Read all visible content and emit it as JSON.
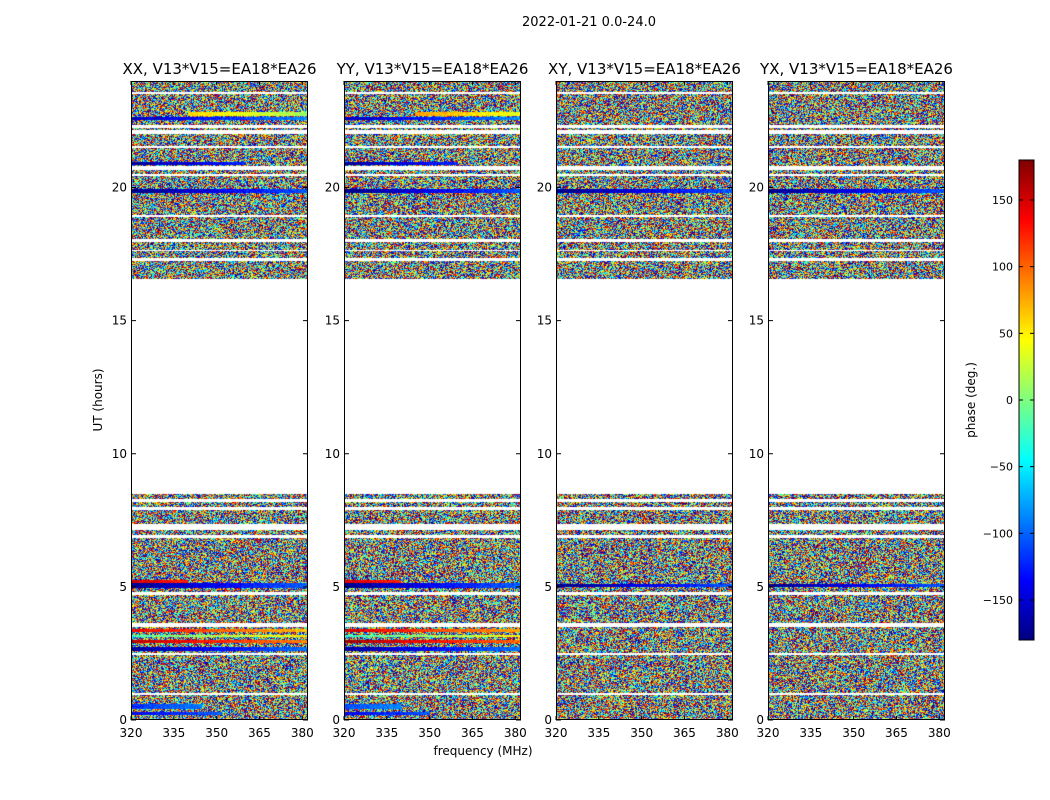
{
  "chart_data": {
    "type": "heatmap",
    "suptitle": "2022-01-21 0.0-24.0",
    "xlabel": "frequency (MHz)",
    "ylabel": "UT (hours)",
    "xlim": [
      320,
      382
    ],
    "ylim": [
      0,
      24
    ],
    "xticks": [
      320,
      335,
      350,
      365,
      380
    ],
    "yticks": [
      0,
      5,
      10,
      15,
      20
    ],
    "panels": [
      {
        "title": "XX, V13*V15=EA18*EA26",
        "bands": [
          {
            "t0": 0.2,
            "t1": 0.3,
            "value": -140,
            "start": 320,
            "end": 352
          },
          {
            "t0": 0.4,
            "t1": 0.6,
            "value": -120,
            "start": 320,
            "end": 345
          },
          {
            "t0": 2.6,
            "t1": 2.75,
            "value": -170,
            "start": 320,
            "end": 382
          },
          {
            "t0": 2.9,
            "t1": 3.0,
            "value": 160,
            "start": 320,
            "end": 382
          },
          {
            "t0": 3.1,
            "t1": 3.2,
            "value": -20,
            "start": 320,
            "end": 382
          },
          {
            "t0": 3.3,
            "t1": 3.4,
            "value": 140,
            "start": 320,
            "end": 382
          },
          {
            "t0": 4.95,
            "t1": 5.15,
            "value": -175,
            "start": 320,
            "end": 382
          },
          {
            "t0": 5.15,
            "t1": 5.25,
            "value": 150,
            "start": 320,
            "end": 340
          },
          {
            "t0": 19.8,
            "t1": 19.95,
            "value": -178,
            "start": 320,
            "end": 382
          },
          {
            "t0": 20.85,
            "t1": 20.95,
            "value": -170,
            "start": 320,
            "end": 360
          },
          {
            "t0": 22.7,
            "t1": 22.85,
            "value": 60,
            "start": 340,
            "end": 382
          },
          {
            "t0": 22.55,
            "t1": 22.65,
            "value": -160,
            "start": 320,
            "end": 382
          }
        ]
      },
      {
        "title": "YY, V13*V15=EA18*EA26",
        "bands": [
          {
            "t0": 0.2,
            "t1": 0.3,
            "value": -140,
            "start": 320,
            "end": 350
          },
          {
            "t0": 0.4,
            "t1": 0.6,
            "value": -110,
            "start": 320,
            "end": 340
          },
          {
            "t0": 2.6,
            "t1": 2.75,
            "value": -170,
            "start": 320,
            "end": 382
          },
          {
            "t0": 2.9,
            "t1": 3.0,
            "value": 170,
            "start": 320,
            "end": 382
          },
          {
            "t0": 3.1,
            "t1": 3.2,
            "value": -30,
            "start": 320,
            "end": 382
          },
          {
            "t0": 3.3,
            "t1": 3.4,
            "value": 150,
            "start": 320,
            "end": 382
          },
          {
            "t0": 4.95,
            "t1": 5.15,
            "value": -175,
            "start": 320,
            "end": 382
          },
          {
            "t0": 5.15,
            "t1": 5.25,
            "value": 150,
            "start": 320,
            "end": 340
          },
          {
            "t0": 19.8,
            "t1": 19.95,
            "value": -178,
            "start": 320,
            "end": 382
          },
          {
            "t0": 20.85,
            "t1": 20.95,
            "value": -170,
            "start": 320,
            "end": 360
          },
          {
            "t0": 22.7,
            "t1": 22.85,
            "value": 80,
            "start": 345,
            "end": 382
          },
          {
            "t0": 22.55,
            "t1": 22.65,
            "value": -160,
            "start": 320,
            "end": 382
          }
        ]
      },
      {
        "title": "XY, V13*V15=EA18*EA26",
        "bands": [
          {
            "t0": 19.8,
            "t1": 19.95,
            "value": -178,
            "start": 320,
            "end": 382
          },
          {
            "t0": 5.0,
            "t1": 5.1,
            "value": -178,
            "start": 320,
            "end": 382
          }
        ]
      },
      {
        "title": "YX, V13*V15=EA18*EA26",
        "bands": [
          {
            "t0": 19.8,
            "t1": 19.95,
            "value": -178,
            "start": 320,
            "end": 382
          },
          {
            "t0": 5.0,
            "t1": 5.1,
            "value": -178,
            "start": 320,
            "end": 382
          }
        ]
      }
    ],
    "no_data_hours": [
      [
        0.0,
        0.05
      ],
      [
        0.95,
        1.0
      ],
      [
        2.45,
        2.52
      ],
      [
        3.5,
        3.65
      ],
      [
        4.7,
        4.8
      ],
      [
        6.85,
        6.95
      ],
      [
        7.15,
        7.35
      ],
      [
        7.9,
        8.0
      ],
      [
        8.2,
        8.3
      ],
      [
        8.5,
        16.55
      ],
      [
        17.25,
        17.35
      ],
      [
        17.6,
        17.65
      ],
      [
        17.95,
        18.05
      ],
      [
        18.9,
        18.95
      ],
      [
        20.45,
        20.5
      ],
      [
        20.65,
        20.8
      ],
      [
        21.5,
        21.55
      ],
      [
        22.0,
        22.15
      ],
      [
        22.25,
        22.35
      ],
      [
        23.5,
        23.6
      ]
    ],
    "colorbar": {
      "label": "phase (deg.)",
      "vmin": -180,
      "vmax": 180,
      "ticks": [
        150,
        100,
        50,
        0,
        -50,
        -100,
        -150
      ],
      "ticklabels": [
        "150",
        "100",
        "50",
        "0",
        "−50",
        "−100",
        "−150"
      ],
      "colormap": "jet",
      "colors": [
        "#00007f",
        "#0000ff",
        "#007fff",
        "#00ffff",
        "#7fff7f",
        "#ffff00",
        "#ff7f00",
        "#ff0000",
        "#7f0000"
      ]
    }
  }
}
